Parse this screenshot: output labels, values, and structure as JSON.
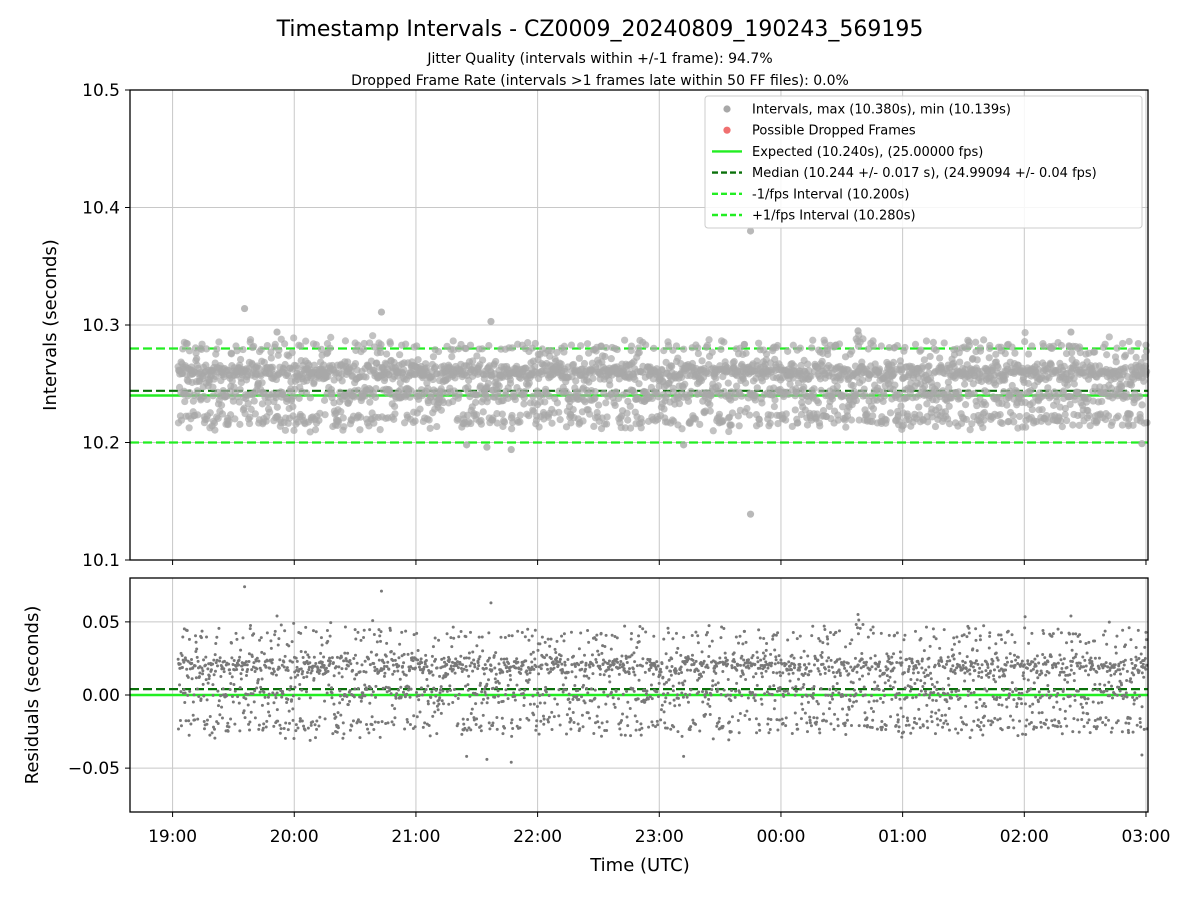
{
  "chart_data": [
    {
      "type": "scatter",
      "title": "Timestamp Intervals - CZ0009_20240809_190243_569195",
      "subtitle_lines": [
        "Jitter Quality (intervals within +/-1 frame): 94.7%",
        "Dropped Frame Rate (intervals >1 frames late within 50 FF files): 0.0%"
      ],
      "xlabel": "",
      "ylabel": "Intervals (seconds)",
      "x_axis": {
        "type": "time",
        "start": "2024-08-09T18:39:00Z",
        "end": "2024-08-10T03:01:00Z",
        "ticks": [
          "2024-08-09T19:00:00Z",
          "2024-08-09T20:00:00Z",
          "2024-08-09T21:00:00Z",
          "2024-08-09T22:00:00Z",
          "2024-08-09T23:00:00Z",
          "2024-08-10T00:00:00Z",
          "2024-08-10T01:00:00Z",
          "2024-08-10T02:00:00Z",
          "2024-08-10T03:00:00Z"
        ]
      },
      "ylim": [
        10.1,
        10.5
      ],
      "yticks": [
        10.1,
        10.2,
        10.3,
        10.4,
        10.5
      ],
      "ytick_labels": [
        "10.1",
        "10.2",
        "10.3",
        "10.4",
        "10.5"
      ],
      "grid": true,
      "legend_position": "top-right",
      "legend": [
        {
          "label": "Intervals, max (10.380s), min (10.139s)",
          "kind": "marker",
          "color": "#a8a8a8"
        },
        {
          "label": "Possible Dropped Frames",
          "kind": "marker",
          "color": "#f07070"
        },
        {
          "label": "Expected (10.240s), (25.00000 fps)",
          "kind": "solid",
          "color": "#22ee22"
        },
        {
          "label": "Median (10.244 +/- 0.017 s), (24.99094 +/- 0.04 fps)",
          "kind": "dashed",
          "color": "#0a700a"
        },
        {
          "label": "-1/fps Interval (10.200s)",
          "kind": "dashed",
          "color": "#22ee22"
        },
        {
          "label": "+1/fps Interval (10.280s)",
          "kind": "dashed",
          "color": "#22ee22"
        }
      ],
      "reference_lines": {
        "expected": 10.24,
        "median": 10.244,
        "minus_one_fps": 10.2,
        "plus_one_fps": 10.28
      },
      "series": [
        {
          "name": "Intervals, max (10.380s), min (10.139s)",
          "levels": [
            10.22,
            10.24,
            10.26,
            10.28
          ],
          "level_weights": [
            0.2,
            0.24,
            0.46,
            0.1
          ],
          "jitter": 0.0045,
          "point_count": 2900,
          "outliers": [
            {
              "x": "2024-08-09T19:35:30Z",
              "y": 10.314
            },
            {
              "x": "2024-08-09T20:43:00Z",
              "y": 10.311
            },
            {
              "x": "2024-08-09T21:37:00Z",
              "y": 10.303
            },
            {
              "x": "2024-08-09T19:51:30Z",
              "y": 10.294
            },
            {
              "x": "2024-08-10T00:38:00Z",
              "y": 10.295
            },
            {
              "x": "2024-08-10T02:23:00Z",
              "y": 10.294
            },
            {
              "x": "2024-08-09T21:47:00Z",
              "y": 10.194
            },
            {
              "x": "2024-08-09T21:35:00Z",
              "y": 10.196
            },
            {
              "x": "2024-08-09T21:25:00Z",
              "y": 10.198
            },
            {
              "x": "2024-08-09T23:12:00Z",
              "y": 10.198
            },
            {
              "x": "2024-08-10T02:58:00Z",
              "y": 10.199
            },
            {
              "x": "2024-08-09T23:45:00Z",
              "y": 10.38
            },
            {
              "x": "2024-08-09T23:45:00Z",
              "y": 10.139
            }
          ]
        },
        {
          "name": "Possible Dropped Frames",
          "values": []
        }
      ]
    },
    {
      "type": "scatter",
      "title": "",
      "xlabel": "Time (UTC)",
      "ylabel": "Residuals (seconds)",
      "x_axis": {
        "type": "time",
        "start": "2024-08-09T18:39:00Z",
        "end": "2024-08-10T03:01:00Z",
        "ticks": [
          "2024-08-09T19:00:00Z",
          "2024-08-09T20:00:00Z",
          "2024-08-09T21:00:00Z",
          "2024-08-09T22:00:00Z",
          "2024-08-09T23:00:00Z",
          "2024-08-10T00:00:00Z",
          "2024-08-10T01:00:00Z",
          "2024-08-10T02:00:00Z",
          "2024-08-10T03:00:00Z"
        ]
      },
      "xtick_labels": [
        "19:00",
        "20:00",
        "21:00",
        "22:00",
        "23:00",
        "00:00",
        "01:00",
        "02:00",
        "03:00"
      ],
      "ylim": [
        -0.08,
        0.08
      ],
      "yticks": [
        -0.05,
        0.0,
        0.05
      ],
      "ytick_labels": [
        "−0.05",
        "0.00",
        "0.05"
      ],
      "grid": true,
      "reference_lines": {
        "zero": 0.0,
        "median_offset": 0.004
      },
      "series": [
        {
          "name": "Residuals",
          "levels": [
            -0.02,
            0.0,
            0.02,
            0.04
          ],
          "level_weights": [
            0.2,
            0.24,
            0.46,
            0.1
          ],
          "jitter": 0.0045,
          "point_count": 2900,
          "outliers": [
            {
              "x": "2024-08-09T19:35:30Z",
              "y": 0.074
            },
            {
              "x": "2024-08-09T20:43:00Z",
              "y": 0.071
            },
            {
              "x": "2024-08-09T21:37:00Z",
              "y": 0.063
            },
            {
              "x": "2024-08-09T19:51:30Z",
              "y": 0.054
            },
            {
              "x": "2024-08-10T00:38:00Z",
              "y": 0.055
            },
            {
              "x": "2024-08-10T02:23:00Z",
              "y": 0.054
            },
            {
              "x": "2024-08-09T21:47:00Z",
              "y": -0.046
            },
            {
              "x": "2024-08-09T21:35:00Z",
              "y": -0.044
            },
            {
              "x": "2024-08-09T21:25:00Z",
              "y": -0.042
            },
            {
              "x": "2024-08-09T23:12:00Z",
              "y": -0.042
            },
            {
              "x": "2024-08-10T02:58:00Z",
              "y": -0.041
            }
          ]
        }
      ]
    }
  ],
  "colors": {
    "interval_point": "#a8a8a8",
    "residual_point": "#787878",
    "dropped_point": "#f07070",
    "expected_line": "#22ee22",
    "median_line": "#0a700a",
    "fps_interval_line": "#22ee22",
    "grid": "#c8c8c8"
  }
}
